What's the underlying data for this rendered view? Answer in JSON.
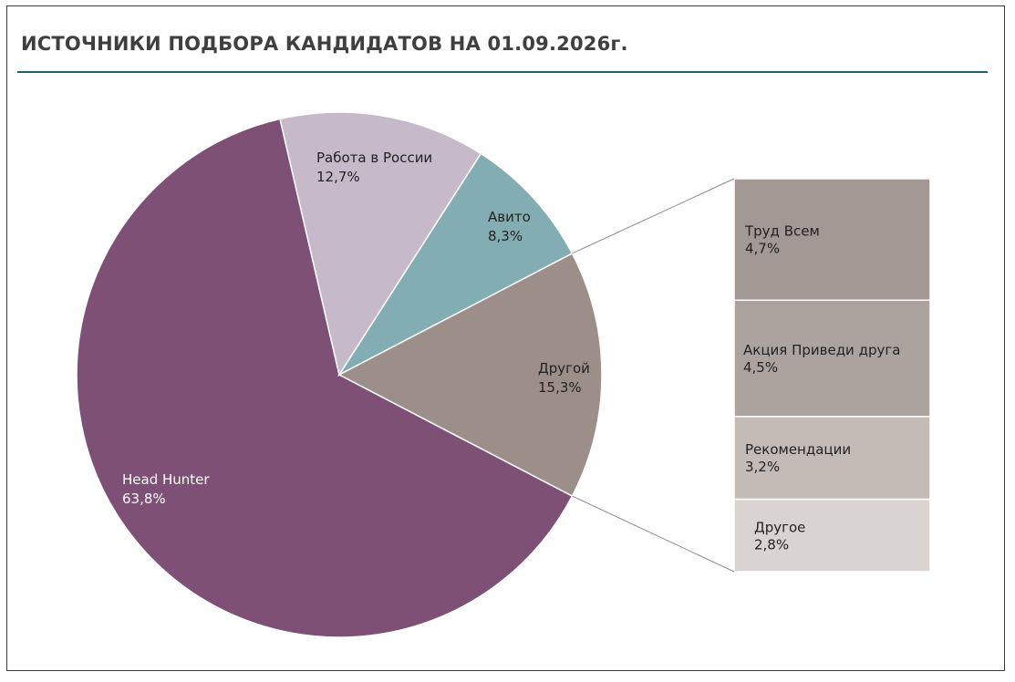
{
  "title": "ИСТОЧНИКИ ПОДБОРА КАНДИДАТОВ НА 01.09.2026г.",
  "colors": {
    "title": "#3f3f3f",
    "rule": "#1f5f66",
    "leader_line": "#8a8a8a"
  },
  "chart_data": {
    "type": "bar-of-pie",
    "title": "ИСТОЧНИКИ ПОДБОРА КАНДИДАТОВ НА 01.09.2026г.",
    "pie": {
      "slices": [
        {
          "name": "Head Hunter",
          "value": 63.8,
          "label": "63,8%",
          "color": "#7f5075",
          "text_color": "#ffffff"
        },
        {
          "name": "Работа в России",
          "value": 12.7,
          "label": "12,7%",
          "color": "#c6b9c9",
          "text_color": "#222222"
        },
        {
          "name": "Авито",
          "value": 8.3,
          "label": "8,3%",
          "color": "#81adb3",
          "text_color": "#222222"
        },
        {
          "name": "Другой",
          "value": 15.3,
          "label": "15,3%",
          "color": "#9c8f89",
          "text_color": "#222222"
        }
      ]
    },
    "bar": {
      "of_slice": "Другой",
      "segments": [
        {
          "name": "Труд Всем",
          "value": 4.7,
          "label": "4,7%",
          "color": "#a39893"
        },
        {
          "name": "Акция Приведи друга",
          "value": 4.5,
          "label": "4,5%",
          "color": "#ada39e"
        },
        {
          "name": "Рекомендации",
          "value": 3.2,
          "label": "3,2%",
          "color": "#c4bbb7"
        },
        {
          "name": "Другое",
          "value": 2.8,
          "label": "2,8%",
          "color": "#d9d4d1"
        }
      ]
    }
  }
}
